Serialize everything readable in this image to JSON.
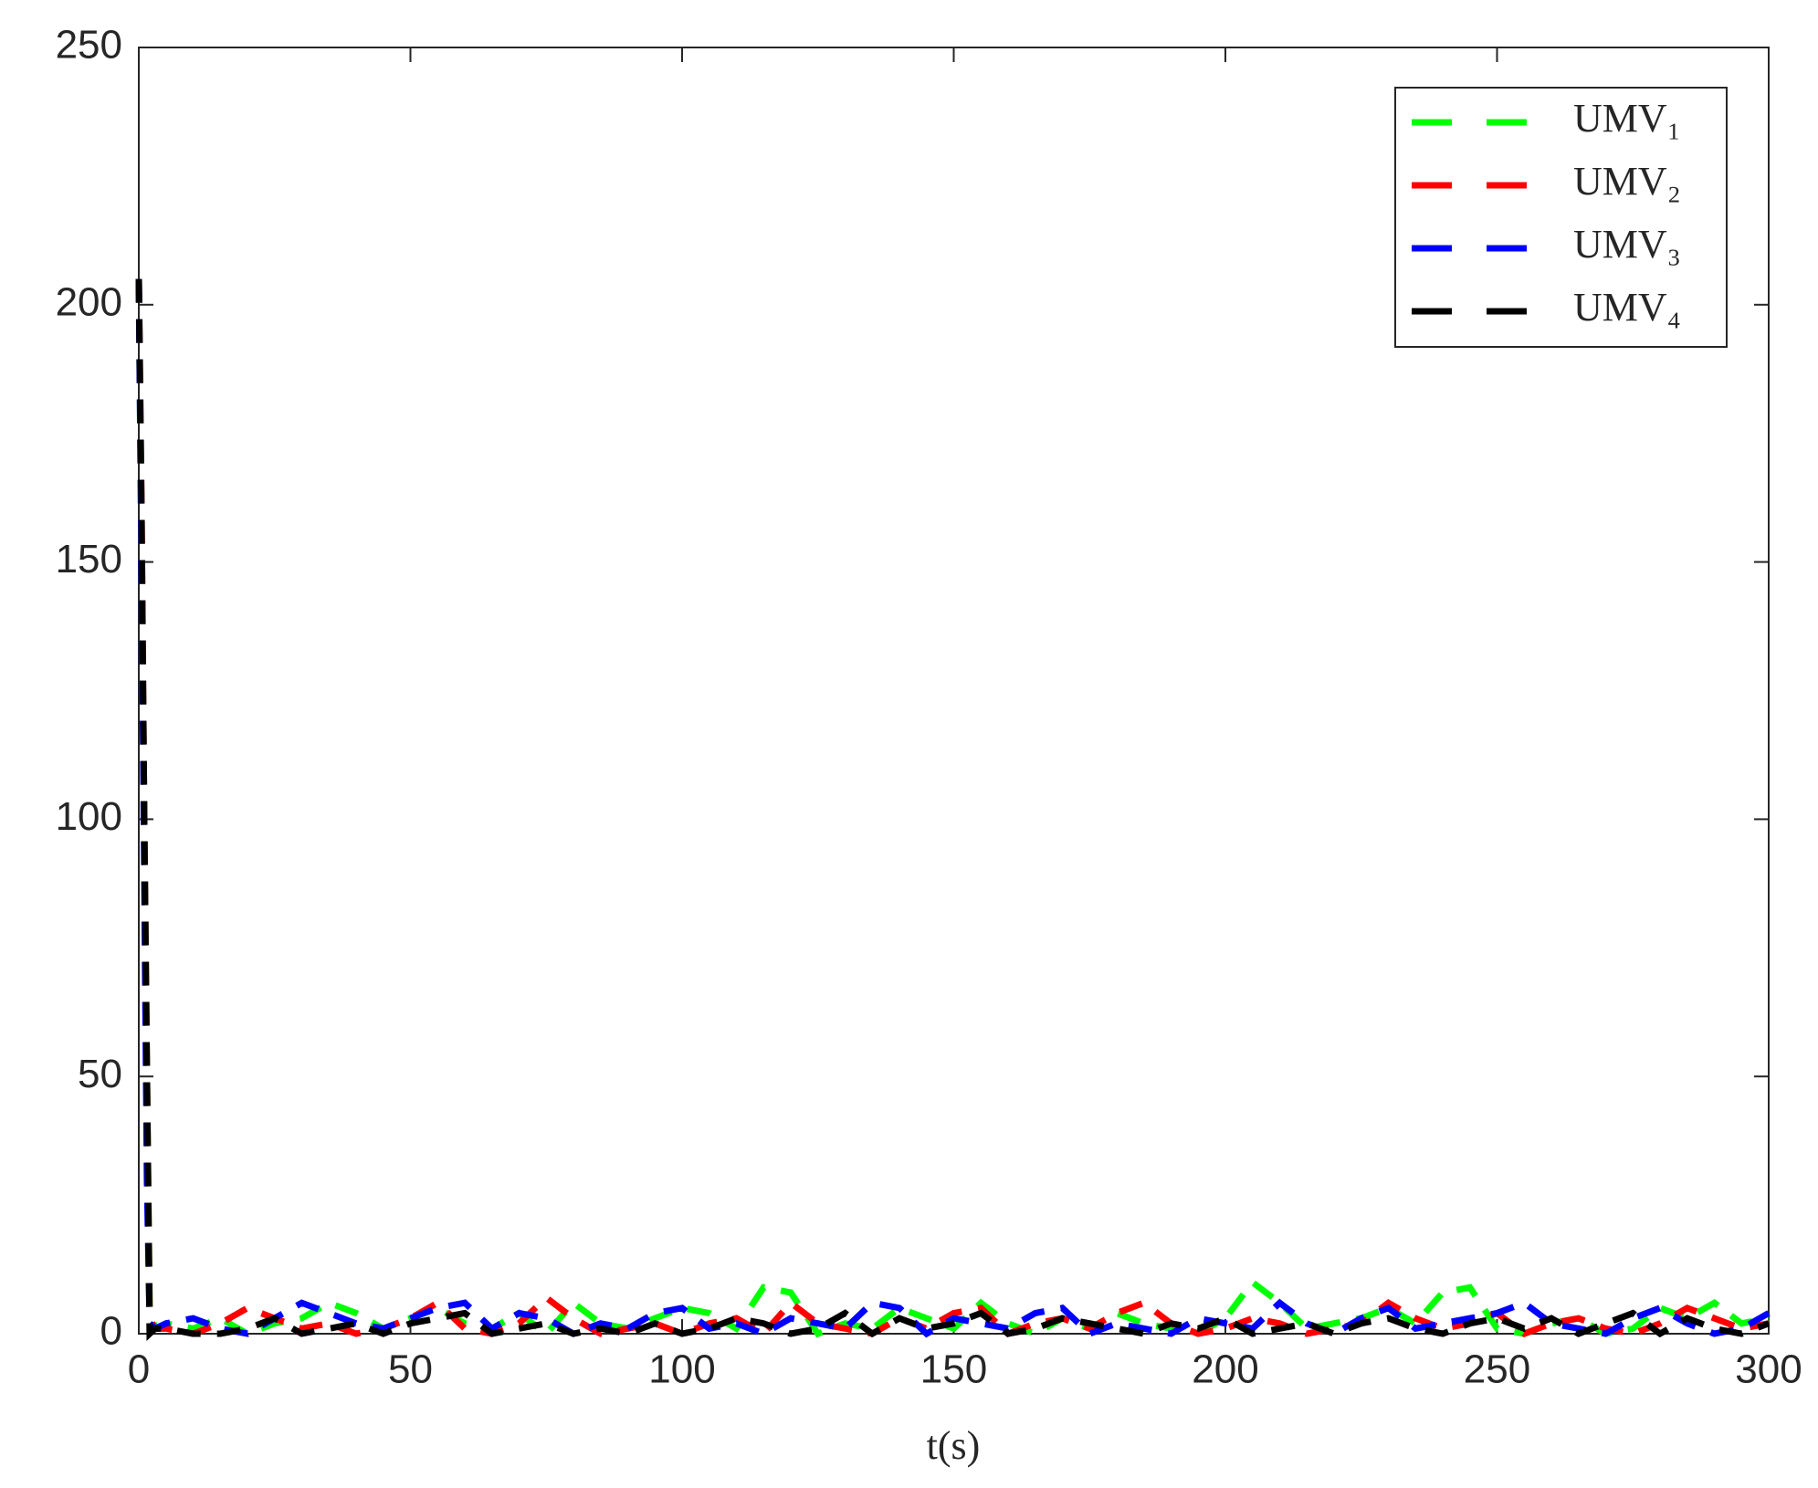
{
  "chart_data": {
    "type": "line",
    "xlabel": "t(s)",
    "x": [
      0,
      0.5,
      1,
      1.5,
      2,
      3,
      5,
      10,
      15,
      20,
      25,
      30,
      35,
      40,
      45,
      50,
      55,
      60,
      65,
      70,
      75,
      80,
      85,
      90,
      95,
      100,
      105,
      110,
      115,
      120,
      125,
      130,
      135,
      140,
      145,
      150,
      155,
      160,
      165,
      170,
      175,
      180,
      185,
      190,
      195,
      200,
      205,
      210,
      215,
      220,
      225,
      230,
      235,
      240,
      245,
      250,
      255,
      260,
      265,
      270,
      275,
      280,
      285,
      290,
      295,
      300
    ],
    "series": [
      {
        "name": "UMV₁",
        "color": "#00ff00",
        "values": [
          205,
          150,
          100,
          50,
          5,
          1,
          2,
          1,
          3,
          0,
          2,
          3,
          6,
          4,
          1,
          3,
          5,
          2,
          1,
          4,
          0,
          6,
          2,
          1,
          3,
          5,
          4,
          1,
          9,
          8,
          0,
          2,
          1,
          5,
          3,
          1,
          6,
          2,
          0,
          3,
          1,
          4,
          2,
          1,
          0,
          3,
          10,
          6,
          1,
          2,
          3,
          5,
          2,
          8,
          9,
          1,
          0,
          2,
          3,
          0,
          1,
          5,
          3,
          6,
          2,
          3
        ]
      },
      {
        "name": "UMV₂",
        "color": "#ff0000",
        "values": [
          205,
          160,
          100,
          50,
          3,
          1,
          1,
          0,
          2,
          5,
          3,
          1,
          2,
          0,
          1,
          3,
          6,
          1,
          0,
          2,
          7,
          3,
          0,
          1,
          2,
          0,
          2,
          3,
          0,
          6,
          2,
          1,
          0,
          3,
          1,
          4,
          5,
          0,
          2,
          3,
          1,
          4,
          6,
          2,
          0,
          1,
          3,
          2,
          0,
          1,
          2,
          6,
          3,
          1,
          2,
          4,
          0,
          2,
          3,
          1,
          0,
          2,
          5,
          3,
          1,
          2
        ]
      },
      {
        "name": "UMV₃",
        "color": "#0000ff",
        "values": [
          205,
          150,
          90,
          30,
          2,
          1,
          2,
          3,
          1,
          0,
          3,
          6,
          4,
          2,
          1,
          3,
          5,
          6,
          1,
          4,
          3,
          0,
          2,
          1,
          4,
          5,
          1,
          2,
          0,
          3,
          2,
          1,
          6,
          5,
          0,
          3,
          2,
          1,
          4,
          5,
          0,
          2,
          1,
          0,
          3,
          2,
          1,
          6,
          2,
          0,
          3,
          5,
          1,
          2,
          3,
          4,
          6,
          2,
          1,
          0,
          3,
          5,
          2,
          0,
          1,
          4
        ]
      },
      {
        "name": "UMV₄",
        "color": "#000000",
        "values": [
          205,
          160,
          100,
          50,
          0,
          1,
          1,
          0,
          0,
          1,
          3,
          0,
          1,
          2,
          0,
          2,
          3,
          4,
          0,
          1,
          2,
          0,
          1,
          0,
          2,
          0,
          1,
          3,
          2,
          0,
          1,
          4,
          0,
          3,
          1,
          2,
          4,
          0,
          1,
          3,
          2,
          1,
          0,
          2,
          1,
          3,
          0,
          1,
          2,
          0,
          2,
          3,
          1,
          0,
          2,
          3,
          1,
          3,
          0,
          2,
          4,
          0,
          3,
          1,
          0,
          2
        ]
      }
    ],
    "xlim": [
      0,
      300
    ],
    "xticks": [
      0,
      50,
      100,
      150,
      200,
      250,
      300
    ],
    "ylim": [
      0,
      250
    ],
    "yticks": [
      0,
      50,
      100,
      150,
      200,
      250
    ],
    "grid": false,
    "legend": "northeast"
  }
}
